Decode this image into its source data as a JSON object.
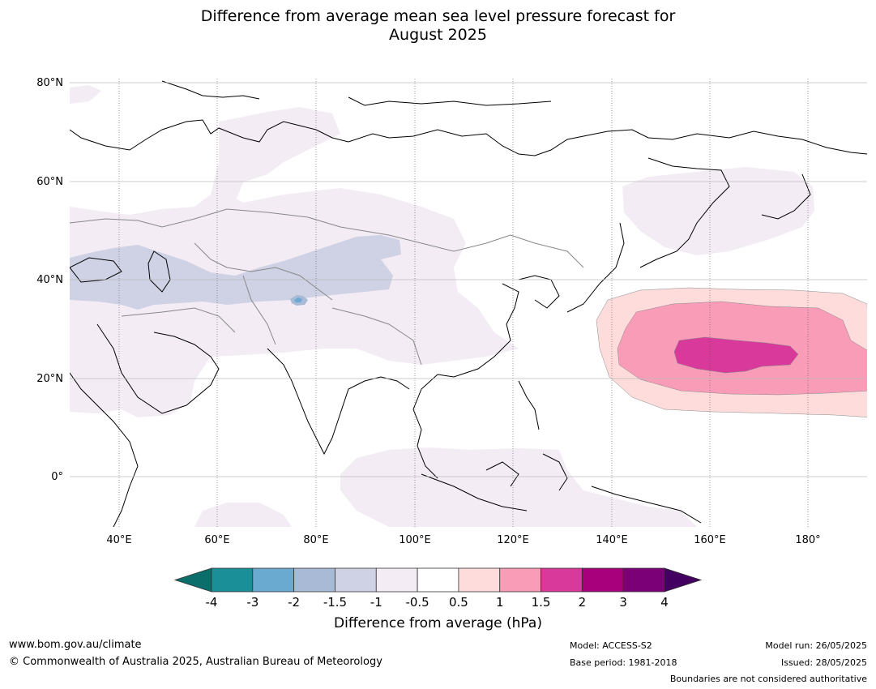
{
  "title": {
    "line1": "Difference from average mean sea level pressure forecast for",
    "line2": "August 2025"
  },
  "map": {
    "lat_labels": [
      "80°N",
      "60°N",
      "40°N",
      "20°N",
      "0°"
    ],
    "lon_labels": [
      "40°E",
      "60°E",
      "80°E",
      "100°E",
      "120°E",
      "140°E",
      "160°E",
      "180°"
    ],
    "extent": {
      "lon": [
        30,
        192
      ],
      "lat": [
        -10,
        81
      ]
    }
  },
  "colorbar": {
    "ticks": [
      "-4",
      "-3",
      "-2",
      "-1.5",
      "-1",
      "-0.5",
      "0.5",
      "1",
      "1.5",
      "2",
      "3",
      "4"
    ],
    "colors": [
      "#0b6e6a",
      "#1b8f97",
      "#6aaad0",
      "#a9bad6",
      "#cfd1e5",
      "#f3ecf5",
      "#ffffff",
      "#fedcdc",
      "#f89cb8",
      "#d8399a",
      "#a8007c",
      "#7b0078",
      "#440060"
    ],
    "label": "Difference from average (hPa)"
  },
  "footer": {
    "url": "www.bom.gov.au/climate",
    "copyright": "© Commonwealth of Australia 2025, Australian Bureau of Meteorology",
    "model": "Model: ACCESS-S2",
    "base_period": "Base period: 1981-2018",
    "model_run": "Model run: 26/05/2025",
    "issued": "Issued: 28/05/2025",
    "disclaimer": "Boundaries are not considered authoritative"
  }
}
